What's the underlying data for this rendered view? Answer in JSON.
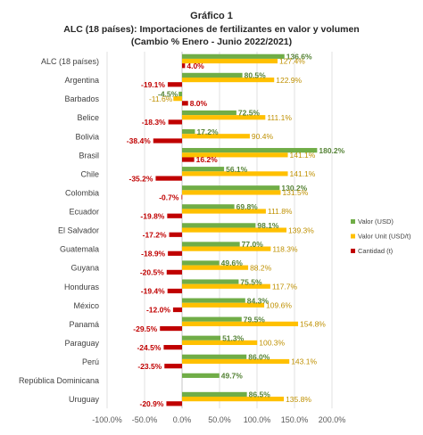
{
  "chart_data": {
    "type": "bar",
    "orientation": "horizontal",
    "title": "Gráfico 1",
    "subtitle_lines": [
      "ALC (18 países): Importaciones de fertilizantes en valor y volumen",
      "(Cambio % Enero - Junio 2022/2021)"
    ],
    "categories": [
      "ALC (18 países)",
      "Argentina",
      "Barbados",
      "Belice",
      "Bolivia",
      "Brasil",
      "Chile",
      "Colombia",
      "Ecuador",
      "El Salvador",
      "Guatemala",
      "Guyana",
      "Honduras",
      "México",
      "Panamá",
      "Paraguay",
      "Perú",
      "República Dominicana",
      "Uruguay"
    ],
    "series": [
      {
        "name": "Valor (USD)",
        "color": "#70ad47",
        "values": [
          136.6,
          80.5,
          -4.5,
          72.5,
          17.2,
          180.2,
          56.1,
          130.2,
          69.8,
          98.1,
          77.0,
          49.6,
          75.5,
          84.3,
          79.5,
          51.3,
          86.0,
          49.7,
          86.5
        ],
        "labels": [
          "136.6%",
          "80.5%",
          "-4.5%",
          "72.5%",
          "17.2%",
          "180.2%",
          "56.1%",
          "130.2%",
          "69.8%",
          "98.1%",
          "77.0%",
          "49.6%",
          "75.5%",
          "84.3%",
          "79.5%",
          "51.3%",
          "86.0%",
          "49.7%",
          "86.5%"
        ]
      },
      {
        "name": "Valor Unit (USD/t)",
        "color": "#ffc000",
        "values": [
          127.4,
          122.9,
          -11.6,
          111.1,
          90.4,
          141.1,
          141.1,
          131.5,
          111.8,
          139.3,
          118.3,
          88.2,
          117.7,
          109.6,
          154.8,
          100.3,
          143.1,
          null,
          135.8
        ],
        "labels": [
          "127.4%",
          "122.9%",
          "-11.6%",
          "111.1%",
          "90.4%",
          "141.1%",
          "141.1%",
          "131.5%",
          "111.8%",
          "139.3%",
          "118.3%",
          "88.2%",
          "117.7%",
          "109.6%",
          "154.8%",
          "100.3%",
          "143.1%",
          "",
          "135.8%"
        ]
      },
      {
        "name": "Cantidad (t)",
        "color": "#c00000",
        "values": [
          4.0,
          -19.1,
          8.0,
          -18.3,
          -38.4,
          16.2,
          -35.2,
          -0.7,
          -19.8,
          -17.2,
          -18.9,
          -20.5,
          -19.4,
          -12.0,
          -29.5,
          -24.5,
          -23.5,
          null,
          -20.9
        ],
        "labels": [
          "4.0%",
          "-19.1%",
          "8.0%",
          "-18.3%",
          "-38.4%",
          "16.2%",
          "-35.2%",
          "-0.7%",
          "-19.8%",
          "-17.2%",
          "-18.9%",
          "-20.5%",
          "-19.4%",
          "-12.0%",
          "-29.5%",
          "-24.5%",
          "-23.5%",
          "",
          "-20.9%"
        ]
      }
    ],
    "xlim": [
      -100,
      200
    ],
    "xticks": [
      -100,
      -50,
      0,
      50,
      100,
      150,
      200
    ],
    "xtick_labels": [
      "-100.0%",
      "-50.0%",
      "0.0%",
      "50.0%",
      "100.0%",
      "150.0%",
      "200.0%"
    ],
    "grid": "vertical",
    "legend_position": "right",
    "label_colors": [
      "#548235",
      "#bf9000",
      "#c00000"
    ]
  }
}
